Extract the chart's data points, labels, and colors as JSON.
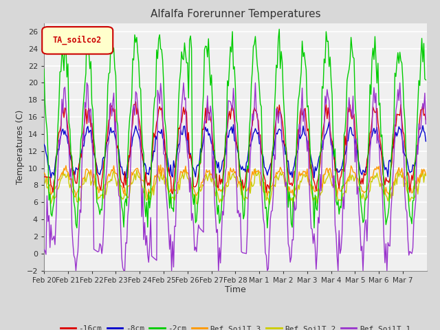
{
  "title": "Alfalfa Forerunner Temperatures",
  "xlabel": "Time",
  "ylabel": "Temperatures (C)",
  "ylim": [
    -2,
    27
  ],
  "yticks": [
    -2,
    0,
    2,
    4,
    6,
    8,
    10,
    12,
    14,
    16,
    18,
    20,
    22,
    24,
    26
  ],
  "fig_bg_color": "#d8d8d8",
  "plot_bg_color": "#f0f0f0",
  "grid_color": "#ffffff",
  "legend_label": "TA_soilco2",
  "legend_box_facecolor": "#ffffcc",
  "legend_box_edgecolor": "#cc0000",
  "series_colors": {
    "-16cm": "#dd0000",
    "-8cm": "#0000cc",
    "-2cm": "#00cc00",
    "Ref_SoilT_3": "#ff9900",
    "Ref_SoilT_2": "#cccc00",
    "Ref_SoilT_1": "#9933cc"
  },
  "tick_labels": [
    "Feb 20",
    "Feb 21",
    "Feb 22",
    "Feb 23",
    "Feb 24",
    "Feb 25",
    "Feb 26",
    "Feb 27",
    "Feb 28",
    "Mar 1",
    "Mar 2",
    "Mar 3",
    "Mar 4",
    "Mar 5",
    "Mar 6",
    "Mar 7"
  ],
  "n_days": 16,
  "pts_per_day": 24
}
